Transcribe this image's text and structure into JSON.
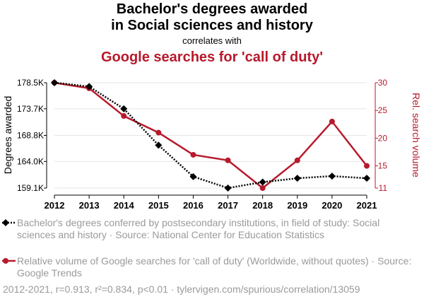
{
  "title_line1": "Bachelor's degrees awarded",
  "title_line2": "in Social sciences and history",
  "correlates_with": "correlates with",
  "title_line3": "Google searches for 'call of duty'",
  "colors": {
    "series1": "#000000",
    "series2": "#b71a2c",
    "grid": "#e5e5e5",
    "text": "#000000",
    "muted": "#9a9a9a"
  },
  "chart_data": {
    "type": "line",
    "x": [
      2012,
      2013,
      2014,
      2015,
      2016,
      2017,
      2018,
      2019,
      2020,
      2021
    ],
    "y_left": {
      "label": "Degrees awarded",
      "ticks": [
        "178.5K",
        "173.7K",
        "168.8K",
        "164.0K",
        "159.1K"
      ],
      "tick_values": [
        178500,
        173700,
        168800,
        164000,
        159100
      ],
      "range": [
        159100,
        178500
      ]
    },
    "y_right": {
      "label": "Rel. search volume",
      "ticks": [
        "30",
        "25",
        "20",
        "15",
        "11"
      ],
      "tick_values": [
        30,
        25,
        20,
        15,
        11
      ],
      "range": [
        11,
        30
      ]
    },
    "series": [
      {
        "axis": "left",
        "style": "dotted",
        "marker": "diamond",
        "values": [
          178500,
          177800,
          173700,
          167000,
          161200,
          159100,
          160200,
          160900,
          161300,
          160900
        ]
      },
      {
        "axis": "right",
        "style": "solid",
        "marker": "circle",
        "values": [
          30,
          29,
          24,
          21,
          17,
          16,
          11,
          16,
          23,
          15
        ]
      }
    ],
    "grid": true
  },
  "legend": [
    {
      "text": "Bachelor's degrees conferred by postsecondary institutions, in field of study: Social sciences and history · Source: National Center for Education Statistics"
    },
    {
      "text": "Relative volume of Google searches for 'call of duty' (Worldwide, without quotes) · Source: Google Trends"
    }
  ],
  "footer": "2012-2021, r=0.913, r²=0.834, p<0.01 · tylervigen.com/spurious/correlation/13059"
}
